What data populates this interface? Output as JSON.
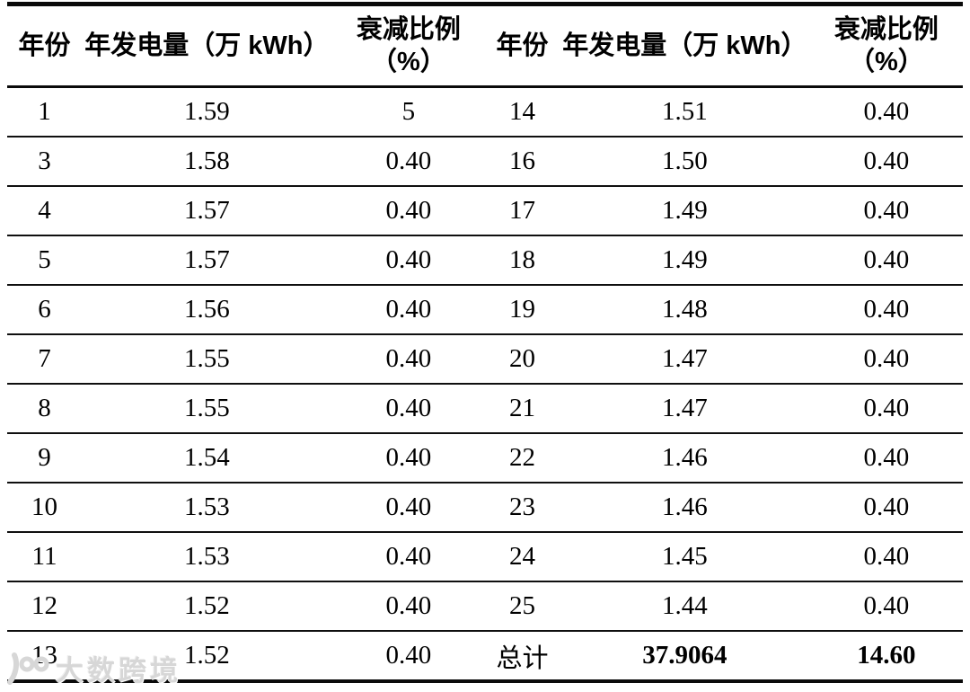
{
  "table": {
    "header": {
      "year": "年份",
      "generation": "年发电量（万 kWh）",
      "decay_top": "衰减比例",
      "decay_bottom": "（%）"
    },
    "rows": [
      {
        "year_l": "1",
        "gen_l": "1.59",
        "decay_l": "5",
        "year_r": "14",
        "gen_r": "1.51",
        "decay_r": "0.40"
      },
      {
        "year_l": "3",
        "gen_l": "1.58",
        "decay_l": "0.40",
        "year_r": "16",
        "gen_r": "1.50",
        "decay_r": "0.40"
      },
      {
        "year_l": "4",
        "gen_l": "1.57",
        "decay_l": "0.40",
        "year_r": "17",
        "gen_r": "1.49",
        "decay_r": "0.40"
      },
      {
        "year_l": "5",
        "gen_l": "1.57",
        "decay_l": "0.40",
        "year_r": "18",
        "gen_r": "1.49",
        "decay_r": "0.40"
      },
      {
        "year_l": "6",
        "gen_l": "1.56",
        "decay_l": "0.40",
        "year_r": "19",
        "gen_r": "1.48",
        "decay_r": "0.40"
      },
      {
        "year_l": "7",
        "gen_l": "1.55",
        "decay_l": "0.40",
        "year_r": "20",
        "gen_r": "1.47",
        "decay_r": "0.40"
      },
      {
        "year_l": "8",
        "gen_l": "1.55",
        "decay_l": "0.40",
        "year_r": "21",
        "gen_r": "1.47",
        "decay_r": "0.40"
      },
      {
        "year_l": "9",
        "gen_l": "1.54",
        "decay_l": "0.40",
        "year_r": "22",
        "gen_r": "1.46",
        "decay_r": "0.40"
      },
      {
        "year_l": "10",
        "gen_l": "1.53",
        "decay_l": "0.40",
        "year_r": "23",
        "gen_r": "1.46",
        "decay_r": "0.40"
      },
      {
        "year_l": "11",
        "gen_l": "1.53",
        "decay_l": "0.40",
        "year_r": "24",
        "gen_r": "1.45",
        "decay_r": "0.40"
      },
      {
        "year_l": "12",
        "gen_l": "1.52",
        "decay_l": "0.40",
        "year_r": "25",
        "gen_r": "1.44",
        "decay_r": "0.40"
      },
      {
        "year_l": "13",
        "gen_l": "1.52",
        "decay_l": "0.40",
        "year_r": "总计",
        "gen_r": "37.9064",
        "decay_r": "14.60",
        "bold_right": true
      }
    ]
  },
  "watermark": {
    "text": "大数跨境"
  },
  "colors": {
    "border": "#0a0a0a",
    "text": "#000000",
    "watermark": "#d7d7d7"
  }
}
